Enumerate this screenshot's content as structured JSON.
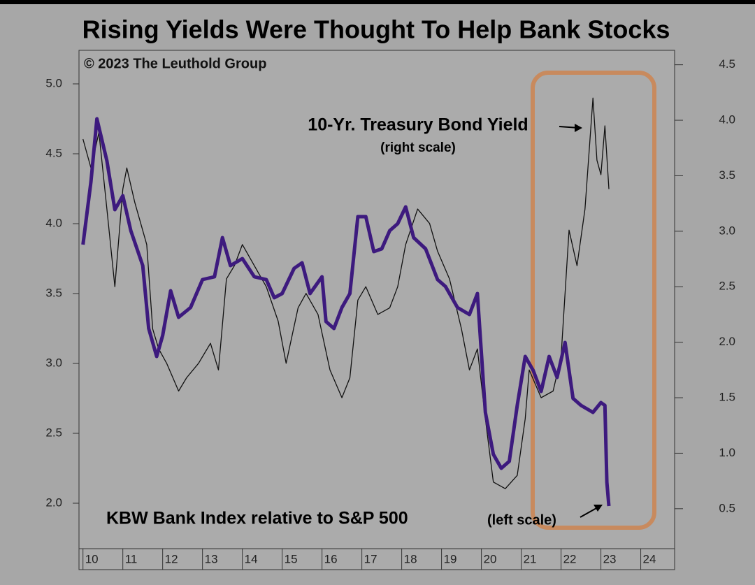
{
  "chart_data": {
    "type": "line",
    "title": "Rising Yields Were Thought To Help Bank Stocks",
    "copyright": "© 2023 The Leuthold Group",
    "annotations": [
      "(right scale)",
      "(left scale)"
    ],
    "xlim": [
      2009.9,
      2024.85
    ],
    "xticks": [
      {
        "value": 2010,
        "label": "10"
      },
      {
        "value": 2011,
        "label": "11"
      },
      {
        "value": 2012,
        "label": "12"
      },
      {
        "value": 2013,
        "label": "13"
      },
      {
        "value": 2014,
        "label": "14"
      },
      {
        "value": 2015,
        "label": "15"
      },
      {
        "value": 2016,
        "label": "16"
      },
      {
        "value": 2017,
        "label": "17"
      },
      {
        "value": 2018,
        "label": "18"
      },
      {
        "value": 2019,
        "label": "19"
      },
      {
        "value": 2020,
        "label": "20"
      },
      {
        "value": 2021,
        "label": "21"
      },
      {
        "value": 2022,
        "label": "22"
      },
      {
        "value": 2023,
        "label": "23"
      },
      {
        "value": 2024,
        "label": "24"
      }
    ],
    "ylim": [
      1.675,
      5.24
    ],
    "yticks": [
      {
        "value": 2,
        "label": "2.0"
      },
      2.5,
      {
        "value": 3,
        "label": "3.0"
      },
      3.5,
      {
        "value": 4,
        "label": "4.0"
      },
      4.5,
      {
        "value": 5,
        "label": "5.0"
      }
    ],
    "y2lim": [
      0.14,
      4.63
    ],
    "y2ticks": [
      0.5,
      {
        "value": 1,
        "label": "1.0"
      },
      1.5,
      {
        "value": 2,
        "label": "2.0"
      },
      2.5,
      {
        "value": 3,
        "label": "3.0"
      },
      3.5,
      {
        "value": 4,
        "label": "4.0"
      },
      4.5
    ],
    "series": [
      {
        "name": "KBW Bank Index relative to S&P 500",
        "color": "#3d1a7e",
        "width": 5,
        "x": [
          2010.0,
          2010.2,
          2010.35,
          2010.6,
          2010.8,
          2011.0,
          2011.2,
          2011.5,
          2011.65,
          2011.85,
          2012.0,
          2012.2,
          2012.4,
          2012.7,
          2013.0,
          2013.3,
          2013.5,
          2013.7,
          2014.0,
          2014.3,
          2014.6,
          2014.8,
          2015.0,
          2015.3,
          2015.5,
          2015.7,
          2016.0,
          2016.1,
          2016.3,
          2016.5,
          2016.7,
          2016.9,
          2017.1,
          2017.3,
          2017.5,
          2017.7,
          2017.9,
          2018.1,
          2018.3,
          2018.6,
          2018.9,
          2019.1,
          2019.4,
          2019.7,
          2019.9,
          2020.1,
          2020.3,
          2020.5,
          2020.7,
          2020.9,
          2021.1,
          2021.3,
          2021.5,
          2021.7,
          2021.9,
          2022.1,
          2022.3,
          2022.5,
          2022.8,
          2023.0,
          2023.1,
          2023.15,
          2023.2
        ],
        "values": [
          3.85,
          4.3,
          4.75,
          4.45,
          4.1,
          4.2,
          3.95,
          3.7,
          3.25,
          3.05,
          3.2,
          3.52,
          3.33,
          3.4,
          3.6,
          3.62,
          3.9,
          3.7,
          3.75,
          3.62,
          3.6,
          3.47,
          3.5,
          3.68,
          3.72,
          3.5,
          3.62,
          3.3,
          3.25,
          3.4,
          3.5,
          4.05,
          4.05,
          3.8,
          3.82,
          3.95,
          4.0,
          4.12,
          3.9,
          3.82,
          3.6,
          3.55,
          3.4,
          3.35,
          3.5,
          2.65,
          2.35,
          2.25,
          2.3,
          2.7,
          3.05,
          2.95,
          2.8,
          3.05,
          2.9,
          3.15,
          2.75,
          2.7,
          2.65,
          2.72,
          2.7,
          2.15,
          1.98
        ]
      },
      {
        "name": "10-Yr. Treasury Bond Yield",
        "color": "#111111",
        "width": 1.3,
        "axis": "y2",
        "x": [
          2010.0,
          2010.2,
          2010.4,
          2010.6,
          2010.8,
          2011.0,
          2011.1,
          2011.3,
          2011.6,
          2011.75,
          2011.9,
          2012.1,
          2012.4,
          2012.6,
          2012.9,
          2013.2,
          2013.4,
          2013.6,
          2013.8,
          2014.0,
          2014.3,
          2014.6,
          2014.9,
          2015.1,
          2015.4,
          2015.6,
          2015.9,
          2016.2,
          2016.5,
          2016.7,
          2016.9,
          2017.1,
          2017.4,
          2017.7,
          2017.9,
          2018.1,
          2018.4,
          2018.7,
          2018.9,
          2019.2,
          2019.5,
          2019.7,
          2019.9,
          2020.1,
          2020.3,
          2020.6,
          2020.9,
          2021.1,
          2021.2,
          2021.5,
          2021.8,
          2022.0,
          2022.2,
          2022.4,
          2022.6,
          2022.8,
          2022.9,
          2023.0,
          2023.1,
          2023.2
        ],
        "values": [
          3.83,
          3.57,
          3.89,
          3.2,
          2.5,
          3.38,
          3.57,
          3.26,
          2.88,
          2.12,
          1.94,
          1.81,
          1.56,
          1.68,
          1.81,
          1.99,
          1.75,
          2.57,
          2.69,
          2.88,
          2.69,
          2.5,
          2.19,
          1.81,
          2.31,
          2.44,
          2.25,
          1.75,
          1.5,
          1.68,
          2.38,
          2.5,
          2.25,
          2.31,
          2.5,
          2.88,
          3.2,
          3.07,
          2.82,
          2.57,
          2.12,
          1.75,
          1.94,
          1.31,
          0.74,
          0.68,
          0.8,
          1.31,
          1.75,
          1.5,
          1.56,
          1.87,
          3.01,
          2.69,
          3.2,
          4.2,
          3.64,
          3.51,
          3.95,
          3.38
        ]
      }
    ]
  }
}
